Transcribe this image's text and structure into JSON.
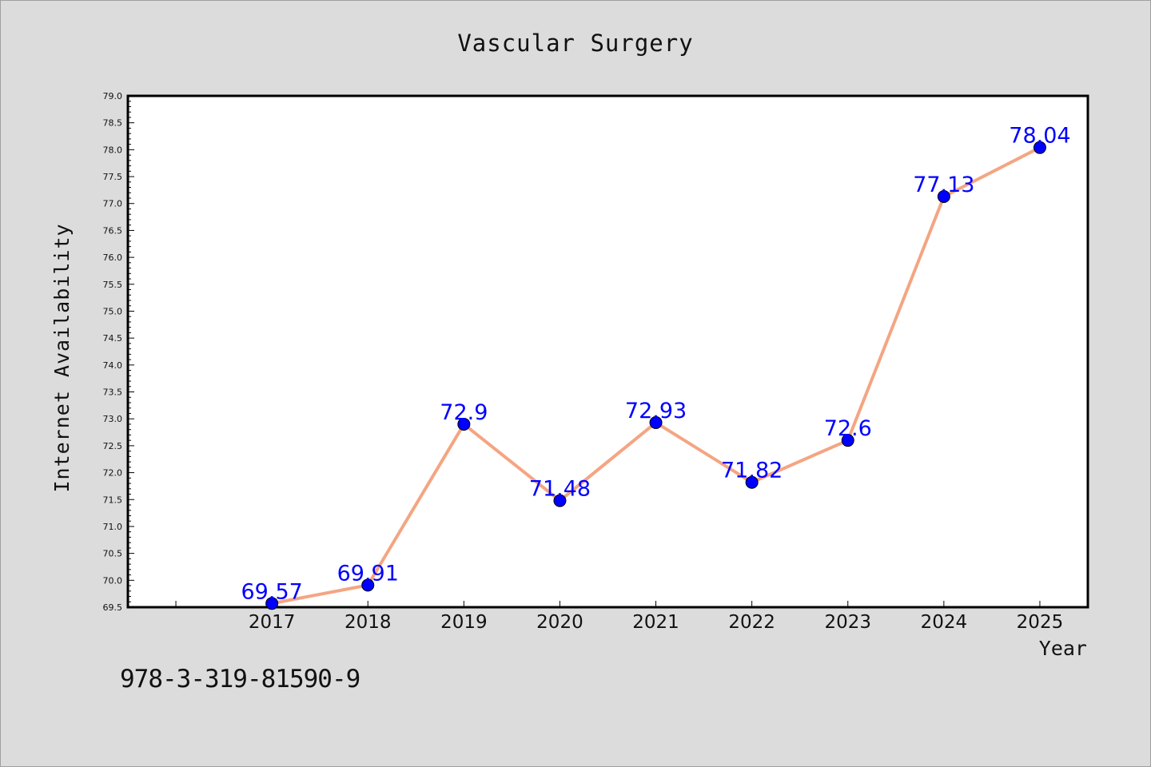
{
  "footer_code": "978-3-319-81590-9",
  "chart_data": {
    "type": "line",
    "title": "Vascular Surgery",
    "xlabel": "Year",
    "ylabel": "Internet Availability",
    "x": [
      2017,
      2018,
      2019,
      2020,
      2021,
      2022,
      2023,
      2024,
      2025
    ],
    "x_tick_labels": [
      "2017",
      "2018",
      "2019",
      "2020",
      "2021",
      "2022",
      "2023",
      "2024",
      "2025"
    ],
    "series": [
      {
        "values": [
          69.57,
          69.91,
          72.9,
          71.48,
          72.93,
          71.82,
          72.6,
          77.13,
          78.04
        ],
        "data_labels": [
          "69.57",
          "69.91",
          "72.9",
          "71.48",
          "72.93",
          "71.82",
          "72.6",
          "77.13",
          "78.04"
        ],
        "line_color": "#f4a582",
        "marker_color": "#0000ff"
      }
    ],
    "ylim": [
      69.5,
      79.0
    ],
    "y_tick_labels": [
      "69.5",
      "70.0",
      "70.5",
      "71.0",
      "71.5",
      "72.0",
      "72.5",
      "73.0",
      "73.5",
      "74.0",
      "74.5",
      "75.0",
      "75.5",
      "76.0",
      "76.5",
      "77.0",
      "77.5",
      "78.0",
      "78.5",
      "79.0"
    ],
    "grid": false,
    "label_color": "#0000ff",
    "background_color": "#dcdcdc",
    "plot_background": "#ffffff"
  }
}
